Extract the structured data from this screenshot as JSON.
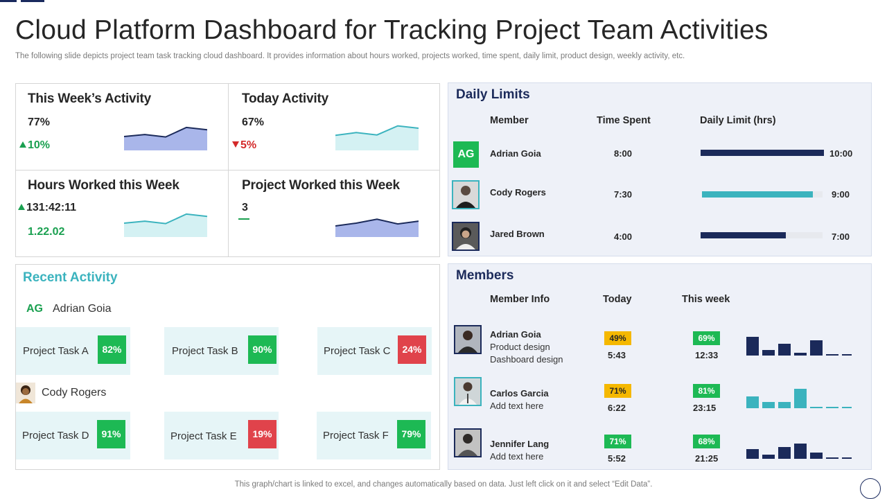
{
  "title": "Cloud Platform Dashboard for Tracking Project Team Activities",
  "subtitle": "The following slide depicts project team task tracking cloud dashboard. It provides information about hours worked, projects worked, time spent, daily limit, product design, weekly activity,  etc.",
  "kpis": [
    {
      "title": "This Week’s Activity",
      "value": "77%",
      "change": "10%",
      "direction": "up",
      "spark": [
        35,
        40,
        34,
        58,
        52
      ],
      "color": "#a9b6ea",
      "stroke": "#1b2a5a"
    },
    {
      "title": "Today Activity",
      "value": "67%",
      "change": "5%",
      "direction": "down",
      "spark": [
        38,
        45,
        39,
        62,
        56
      ],
      "color": "#d4f1f3",
      "stroke": "#3bb3be"
    },
    {
      "title": "Hours Worked this Week",
      "value": "131:42:11",
      "change": "1.22.02",
      "direction": "up",
      "spark": [
        35,
        40,
        34,
        58,
        52
      ],
      "color": "#d4f1f3",
      "stroke": "#3bb3be"
    },
    {
      "title": "Project Worked this Week",
      "value": "3",
      "change": "",
      "direction": "none",
      "spark": [
        28,
        35,
        45,
        33,
        40
      ],
      "color": "#a9b6ea",
      "stroke": "#1b2a5a"
    }
  ],
  "recent": {
    "title": "Recent Activity",
    "people": [
      {
        "initials": "AG",
        "name": "Adrian Goia",
        "tasks": [
          {
            "label": "Project  Task A",
            "pct": "82%",
            "status": "good"
          },
          {
            "label": "Project  Task B",
            "pct": "90%",
            "status": "good"
          },
          {
            "label": "Project  Task C",
            "pct": "24%",
            "status": "bad"
          }
        ]
      },
      {
        "initials": "",
        "name": "Cody Rogers",
        "tasks": [
          {
            "label": "Project  Task D",
            "pct": "91%",
            "status": "good"
          },
          {
            "label": "Project  Task E",
            "pct": "19%",
            "status": "bad"
          },
          {
            "label": "Project  Task F",
            "pct": "79%",
            "status": "good"
          }
        ]
      }
    ]
  },
  "daily_limits": {
    "title": "Daily Limits",
    "headers": {
      "member": "Member",
      "time_spent": "Time Spent",
      "limit": "Daily Limit (hrs)"
    },
    "rows": [
      {
        "initials": "AG",
        "name": "Adrian Goia",
        "time": "8:00",
        "limit": "10:00",
        "fill": 1.0,
        "color": "#1b2a5a"
      },
      {
        "initials": "",
        "name": "Cody Rogers",
        "time": "7:30",
        "limit": "9:00",
        "fill": 0.92,
        "color": "#3bb3be"
      },
      {
        "initials": "",
        "name": "Jared Brown",
        "time": "4:00",
        "limit": "7:00",
        "fill": 0.7,
        "color": "#1b2a5a"
      }
    ]
  },
  "members": {
    "title": "Members",
    "headers": {
      "info": "Member Info",
      "today": "Today",
      "week": "This week"
    },
    "rows": [
      {
        "name": "Adrian Goia",
        "lines": [
          "Product design",
          "Dashboard design"
        ],
        "today_pct": "49%",
        "today_time": "5:43",
        "week_pct": "69%",
        "week_time": "12:33",
        "bars": [
          27,
          8,
          17,
          4,
          22,
          2,
          2
        ],
        "color": "#1b2a5a"
      },
      {
        "name": "Carlos Garcia",
        "lines": [
          "Add text here"
        ],
        "today_pct": "71%",
        "today_time": "6:22",
        "week_pct": "81%",
        "week_time": "23:15",
        "bars": [
          17,
          9,
          9,
          28,
          2,
          2,
          2
        ],
        "color": "#3bb3be"
      },
      {
        "name": "Jennifer Lang",
        "lines": [
          "Add text here"
        ],
        "today_pct": "71%",
        "today_time": "5:52",
        "week_pct": "68%",
        "week_time": "21:25",
        "bars": [
          14,
          6,
          17,
          22,
          9,
          2,
          2
        ],
        "color": "#1b2a5a"
      }
    ]
  },
  "footer": "This graph/chart is linked to excel,  and changes automatically based on data. Just left click on it and select “Edit Data”."
}
